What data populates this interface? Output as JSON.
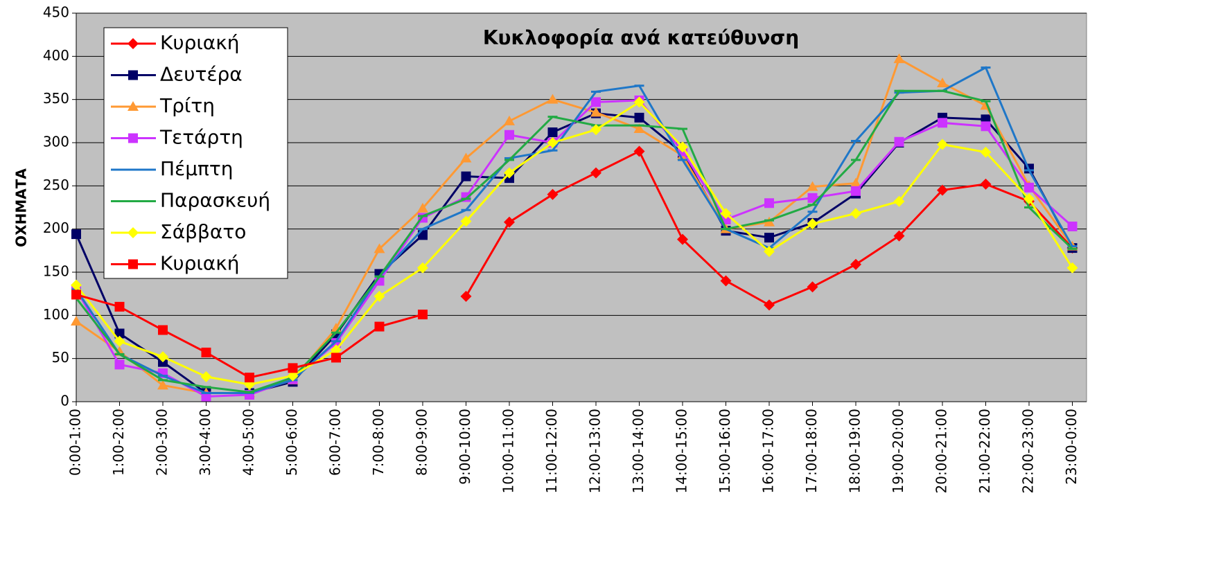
{
  "chart_data": {
    "type": "line",
    "title": "Κυκλοφορία ανά κατεύθυνση",
    "y_label": "ΟΧΗΜΑΤΑ",
    "categories": [
      "0:00-1:00",
      "1:00-2:00",
      "2:00-3:00",
      "3:00-4:00",
      "4:00-5:00",
      "5:00-6:00",
      "6:00-7:00",
      "7:00-8:00",
      "8:00-9:00",
      "9:00-10:00",
      "10:00-11:00",
      "11:00-12:00",
      "12:00-13:00",
      "13:00-14:00",
      "14:00-15:00",
      "15:00-16:00",
      "16:00-17:00",
      "17:00-18:00",
      "18:00-19:00",
      "19:00-20:00",
      "20:00-21:00",
      "21:00-22:00",
      "22:00-23:00",
      "23:00-0:00"
    ],
    "ylim": [
      0,
      450
    ],
    "yticks": [
      0,
      50,
      100,
      150,
      200,
      250,
      300,
      350,
      400,
      450
    ],
    "grid": true,
    "legend": "upper left",
    "series": [
      {
        "name": "Κυριακή",
        "color": "#ff0000",
        "marker": "diamond",
        "values": [
          null,
          null,
          null,
          null,
          null,
          null,
          null,
          null,
          null,
          122,
          208,
          240,
          265,
          290,
          188,
          140,
          112,
          133,
          159,
          192,
          245,
          252,
          232,
          178
        ]
      },
      {
        "name": "Δευτέρα",
        "color": "#000066",
        "marker": "square",
        "values": [
          194,
          79,
          46,
          10,
          10,
          23,
          78,
          148,
          193,
          261,
          259,
          312,
          334,
          329,
          288,
          198,
          190,
          207,
          241,
          300,
          329,
          327,
          270,
          178
        ]
      },
      {
        "name": "Τρίτη",
        "color": "#ff9933",
        "marker": "triangle",
        "values": [
          93,
          58,
          19,
          10,
          10,
          25,
          85,
          177,
          224,
          282,
          325,
          350,
          335,
          316,
          285,
          200,
          208,
          249,
          253,
          397,
          369,
          343,
          250,
          180
        ]
      },
      {
        "name": "Τετάρτη",
        "color": "#cc33ff",
        "marker": "square",
        "values": [
          130,
          43,
          33,
          6,
          8,
          26,
          68,
          140,
          213,
          237,
          309,
          300,
          347,
          349,
          290,
          211,
          230,
          236,
          244,
          301,
          323,
          319,
          248,
          203
        ]
      },
      {
        "name": "Πέμπτη",
        "color": "#1f77c8",
        "marker": "dash",
        "values": [
          130,
          55,
          30,
          10,
          10,
          25,
          70,
          145,
          200,
          222,
          282,
          291,
          359,
          366,
          280,
          200,
          178,
          220,
          302,
          358,
          360,
          387,
          268,
          180
        ]
      },
      {
        "name": "Παρασκευή",
        "color": "#22aa44",
        "marker": "dash",
        "values": [
          120,
          55,
          25,
          17,
          11,
          28,
          80,
          145,
          215,
          235,
          280,
          330,
          320,
          320,
          316,
          200,
          210,
          228,
          280,
          360,
          360,
          348,
          225,
          177
        ]
      },
      {
        "name": "Σάββατο",
        "color": "#ffff00",
        "marker": "diamond",
        "values": [
          135,
          70,
          52,
          29,
          20,
          30,
          60,
          122,
          155,
          209,
          265,
          300,
          315,
          347,
          295,
          218,
          174,
          206,
          218,
          232,
          298,
          289,
          235,
          155
        ]
      },
      {
        "name": "Κυριακή",
        "color": "#ff0000",
        "marker": "square",
        "values": [
          124,
          110,
          83,
          57,
          28,
          39,
          51,
          87,
          101,
          null,
          null,
          null,
          null,
          null,
          null,
          null,
          null,
          null,
          null,
          null,
          null,
          null,
          null,
          null
        ]
      }
    ]
  }
}
